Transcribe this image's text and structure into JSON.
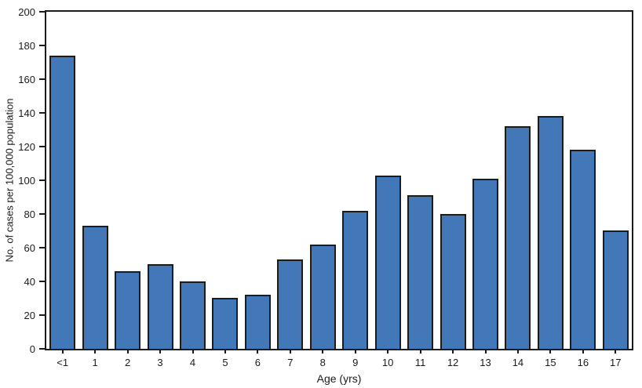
{
  "chart_data": {
    "type": "bar",
    "title": "",
    "categories": [
      "<1",
      "1",
      "2",
      "3",
      "4",
      "5",
      "6",
      "7",
      "8",
      "9",
      "10",
      "11",
      "12",
      "13",
      "14",
      "15",
      "16",
      "17"
    ],
    "values": [
      174,
      73,
      46,
      50,
      40,
      30,
      32,
      53,
      62,
      82,
      103,
      91,
      80,
      101,
      132,
      138,
      118,
      70
    ],
    "xlabel": "Age (yrs)",
    "ylabel": "No. of cases per 100,000 population",
    "ylim": [
      0,
      200
    ],
    "ytick_step": 20,
    "ytick_labels": [
      "0",
      "20",
      "40",
      "60",
      "80",
      "100",
      "120",
      "140",
      "160",
      "180",
      "200"
    ],
    "grid": false,
    "legend": null,
    "colors": {
      "bar_fill": "#4278b8",
      "bar_border": "#1c1c1c",
      "frame": "#1c1c1c",
      "text": "#1b1b1f",
      "background": "#ffffff"
    }
  }
}
